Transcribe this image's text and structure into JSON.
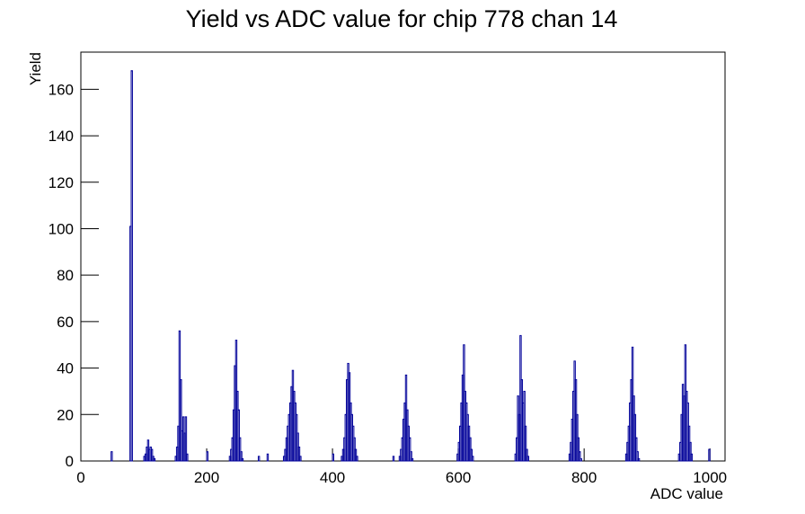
{
  "chart_data": {
    "type": "histogram",
    "title": "Yield vs ADC value for chip 778 chan 14",
    "xlabel": "ADC value",
    "ylabel": "Yield",
    "color": "#000099",
    "bins": [
      0,
      48,
      50,
      78,
      80,
      82,
      100,
      102,
      104,
      106,
      108,
      110,
      112,
      114,
      116,
      118,
      150,
      152,
      154,
      156,
      158,
      160,
      162,
      164,
      166,
      168,
      170,
      200,
      202,
      236,
      238,
      240,
      242,
      244,
      246,
      248,
      250,
      252,
      254,
      256,
      258,
      282,
      284,
      296,
      298,
      322,
      324,
      326,
      328,
      330,
      332,
      334,
      336,
      338,
      340,
      342,
      344,
      346,
      348,
      350,
      400,
      402,
      414,
      416,
      418,
      420,
      422,
      424,
      426,
      428,
      430,
      432,
      434,
      436,
      438,
      440,
      496,
      498,
      506,
      508,
      510,
      512,
      514,
      516,
      518,
      520,
      522,
      524,
      526,
      528,
      598,
      600,
      602,
      604,
      606,
      608,
      610,
      612,
      614,
      616,
      618,
      620,
      622,
      624,
      690,
      692,
      694,
      696,
      698,
      700,
      702,
      704,
      706,
      708,
      710,
      712,
      776,
      778,
      780,
      782,
      784,
      786,
      788,
      790,
      792,
      794,
      796,
      866,
      868,
      870,
      872,
      874,
      876,
      878,
      880,
      882,
      884,
      886,
      888,
      950,
      952,
      954,
      956,
      958,
      960,
      962,
      964,
      966,
      968,
      970,
      972,
      998,
      1000,
      1024
    ],
    "values": [
      0,
      4,
      0,
      101,
      168,
      0,
      2,
      3,
      6,
      9,
      5,
      6,
      5,
      2,
      1,
      0,
      2,
      6,
      15,
      56,
      35,
      13,
      19,
      12,
      19,
      3,
      0,
      4,
      0,
      2,
      5,
      10,
      22,
      41,
      52,
      30,
      22,
      10,
      4,
      1,
      0,
      2,
      0,
      3,
      0,
      2,
      5,
      10,
      15,
      20,
      25,
      32,
      39,
      30,
      25,
      20,
      12,
      6,
      2,
      0,
      3,
      0,
      2,
      5,
      10,
      20,
      35,
      42,
      38,
      25,
      20,
      15,
      10,
      5,
      2,
      0,
      2,
      0,
      2,
      5,
      10,
      18,
      25,
      37,
      22,
      15,
      10,
      4,
      1,
      0,
      3,
      8,
      15,
      25,
      37,
      50,
      30,
      25,
      20,
      15,
      10,
      5,
      2,
      0,
      3,
      10,
      28,
      20,
      54,
      35,
      25,
      30,
      15,
      5,
      2,
      0,
      3,
      8,
      18,
      30,
      43,
      35,
      20,
      10,
      4,
      1,
      0,
      3,
      8,
      15,
      25,
      35,
      49,
      28,
      20,
      10,
      4,
      1,
      0,
      3,
      8,
      20,
      33,
      28,
      50,
      30,
      25,
      15,
      8,
      3,
      0,
      5,
      0
    ],
    "xlim": [
      0,
      1024
    ],
    "ylim": [
      0,
      176
    ],
    "xticks": [
      0,
      200,
      400,
      600,
      800,
      1000
    ],
    "yticks": [
      0,
      20,
      40,
      60,
      80,
      100,
      120,
      140,
      160
    ]
  }
}
